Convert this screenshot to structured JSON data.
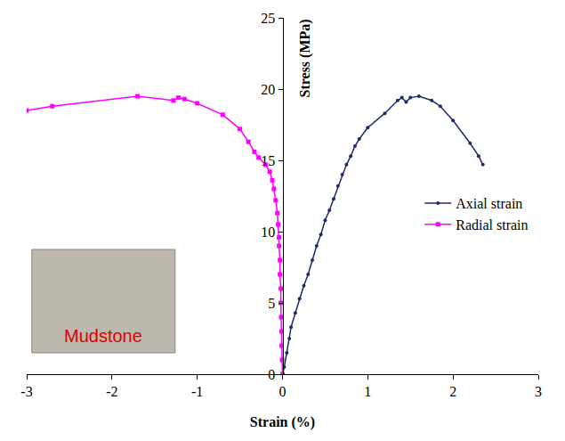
{
  "chart_data": {
    "type": "line",
    "x_label": "Strain (%)",
    "y_label": "Stress (MPa)",
    "annotations": [
      "Mudstone"
    ],
    "xlim": [
      -3,
      3
    ],
    "xticks": [
      -3,
      -2,
      -1,
      0,
      1,
      2,
      3
    ],
    "ylim": [
      0,
      25
    ],
    "yticks": [
      0,
      5,
      10,
      15,
      20,
      25
    ],
    "grid": false,
    "legend": "right",
    "series": [
      {
        "name": "Axial strain",
        "color": "#1f2a6e",
        "marker": "circle",
        "line_style": "solid",
        "x": [
          0,
          0.02,
          0.05,
          0.08,
          0.1,
          0.15,
          0.2,
          0.25,
          0.3,
          0.35,
          0.4,
          0.45,
          0.5,
          0.55,
          0.6,
          0.65,
          0.7,
          0.75,
          0.8,
          0.85,
          0.9,
          1.0,
          1.2,
          1.35,
          1.4,
          1.45,
          1.5,
          1.6,
          1.75,
          1.85,
          2.0,
          2.2,
          2.3,
          2.35
        ],
        "values": [
          0,
          0.5,
          1.5,
          2.5,
          3.3,
          4.3,
          5.3,
          6.2,
          7,
          8,
          9,
          9.8,
          10.8,
          11.5,
          12.3,
          13.2,
          14,
          14.7,
          15.3,
          16,
          16.5,
          17.3,
          18.3,
          19.2,
          19.4,
          19.1,
          19.4,
          19.5,
          19.2,
          18.8,
          17.8,
          16.2,
          15.3,
          14.7
        ]
      },
      {
        "name": "Radial strain",
        "color": "#ff00ff",
        "marker": "square",
        "line_style": "solid",
        "x": [
          0,
          -0.005,
          -0.01,
          -0.01,
          -0.015,
          -0.02,
          -0.02,
          -0.03,
          -0.03,
          -0.04,
          -0.04,
          -0.05,
          -0.06,
          -0.08,
          -0.1,
          -0.12,
          -0.15,
          -0.2,
          -0.28,
          -0.33,
          -0.4,
          -0.5,
          -0.7,
          -1.0,
          -1.15,
          -1.22,
          -1.28,
          -1.7,
          -2.7,
          -3
        ],
        "values": [
          0,
          1,
          2,
          3,
          4,
          5,
          6,
          7,
          8,
          9,
          9.6,
          10.5,
          11.3,
          12.2,
          13,
          13.6,
          14.2,
          14.7,
          15.2,
          15.6,
          16.3,
          17.2,
          18.2,
          19.0,
          19.3,
          19.4,
          19.2,
          19.5,
          18.8,
          18.5
        ]
      }
    ]
  }
}
